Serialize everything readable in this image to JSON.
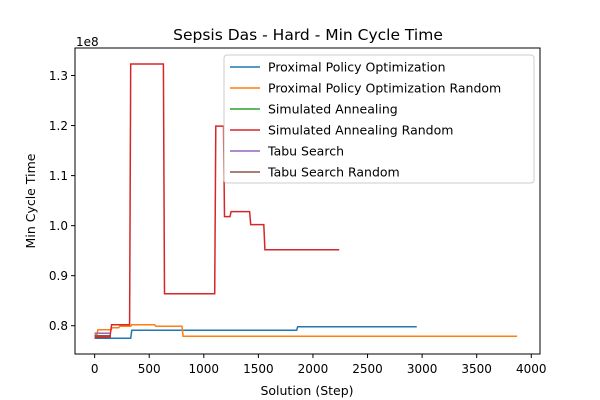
{
  "chart_data": {
    "type": "line",
    "title": "Sepsis Das - Hard - Min Cycle Time",
    "xlabel": "Solution (Step)",
    "ylabel": "Min Cycle Time",
    "y_offset_label": "1e8",
    "xlim": [
      -180,
      4080
    ],
    "ylim": [
      0.7435,
      1.355
    ],
    "x_ticks": [
      0,
      500,
      1000,
      1500,
      2000,
      2500,
      3000,
      3500,
      4000
    ],
    "y_ticks": [
      0.8,
      0.9,
      1.0,
      1.1,
      1.2,
      1.3
    ],
    "y_tick_labels": [
      "0.8",
      "0.9",
      "1.0",
      "1.1",
      "1.2",
      "1.3"
    ],
    "grid": false,
    "legend_position": "top-right",
    "series": [
      {
        "name": "Proximal Policy Optimization",
        "color": "#1f77b4",
        "points": [
          [
            0,
            0.775
          ],
          [
            330,
            0.775
          ],
          [
            340,
            0.791
          ],
          [
            1850,
            0.791
          ],
          [
            1860,
            0.798
          ],
          [
            2950,
            0.798
          ]
        ]
      },
      {
        "name": "Proximal Policy Optimization Random",
        "color": "#ff7f0e",
        "points": [
          [
            0,
            0.782
          ],
          [
            20,
            0.782
          ],
          [
            30,
            0.792
          ],
          [
            150,
            0.792
          ],
          [
            160,
            0.796
          ],
          [
            220,
            0.796
          ],
          [
            230,
            0.799
          ],
          [
            330,
            0.799
          ],
          [
            340,
            0.802
          ],
          [
            550,
            0.802
          ],
          [
            560,
            0.799
          ],
          [
            800,
            0.799
          ],
          [
            810,
            0.779
          ],
          [
            3870,
            0.779
          ]
        ]
      },
      {
        "name": "Simulated Annealing",
        "color": "#2ca02c",
        "points": [
          [
            0,
            0.779
          ],
          [
            150,
            0.779
          ]
        ]
      },
      {
        "name": "Simulated Annealing Random",
        "color": "#d62728",
        "points": [
          [
            0,
            0.777
          ],
          [
            140,
            0.777
          ],
          [
            155,
            0.802
          ],
          [
            320,
            0.802
          ],
          [
            330,
            1.323
          ],
          [
            630,
            1.323
          ],
          [
            640,
            0.864
          ],
          [
            1100,
            0.864
          ],
          [
            1110,
            1.199
          ],
          [
            1180,
            1.199
          ],
          [
            1190,
            1.018
          ],
          [
            1240,
            1.018
          ],
          [
            1250,
            1.028
          ],
          [
            1420,
            1.028
          ],
          [
            1430,
            1.002
          ],
          [
            1550,
            1.002
          ],
          [
            1560,
            0.952
          ],
          [
            2240,
            0.952
          ]
        ]
      },
      {
        "name": "Tabu Search",
        "color": "#9467bd",
        "points": [
          [
            0,
            0.785
          ],
          [
            140,
            0.785
          ]
        ]
      },
      {
        "name": "Tabu Search Random",
        "color": "#8c564b",
        "points": [
          [
            0,
            0.78
          ],
          [
            140,
            0.78
          ]
        ]
      }
    ]
  }
}
